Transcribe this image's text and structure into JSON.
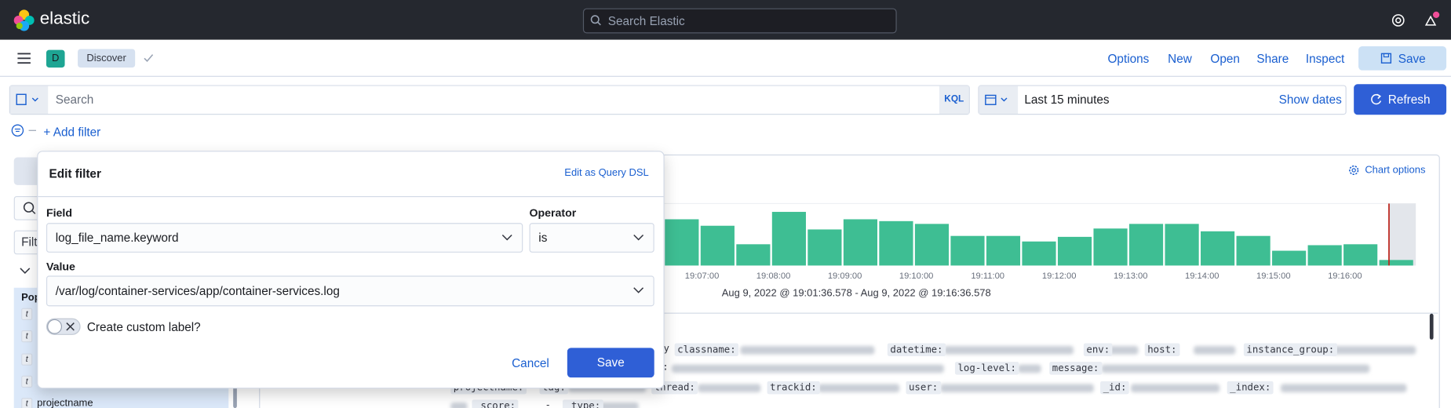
{
  "header": {
    "logo": "elastic",
    "search_placeholder": "Search Elastic"
  },
  "app_bar": {
    "space_badge": "D",
    "breadcrumb": "Discover",
    "menu": [
      "Options",
      "New",
      "Open",
      "Share",
      "Inspect"
    ],
    "save": "Save"
  },
  "query_bar": {
    "placeholder": "Search",
    "language": "KQL",
    "date_range": "Last 15 minutes",
    "show_dates": "Show dates",
    "refresh": "Refresh"
  },
  "filter_bar": {
    "add_filter": "+ Add filter"
  },
  "sidebar": {
    "filter_placeholder": "Filt",
    "popular_heading": "Pop",
    "field_types": [
      "t",
      "t",
      "t",
      "t",
      "t"
    ],
    "visible_field": "projectname"
  },
  "chart_data": {
    "type": "bar",
    "chart_options": "Chart options",
    "categories": [
      null,
      "19:07:00",
      null,
      "19:08:00",
      null,
      "19:09:00",
      null,
      "19:10:00",
      null,
      "19:11:00",
      null,
      "19:12:00",
      null,
      "19:13:00",
      null,
      "19:14:00",
      null,
      "19:15:00",
      null,
      "19:16:00",
      null
    ],
    "values": [
      50,
      43,
      23,
      58,
      39,
      50,
      48,
      45,
      32,
      32,
      26,
      31,
      40,
      45,
      45,
      37,
      32,
      16,
      22,
      23,
      6
    ],
    "color": "#3ebe93",
    "ylim": [
      0,
      69
    ],
    "time_range": "Aug 9, 2022 @ 19:01:36.578 - Aug 9, 2022 @ 19:16:36.578"
  },
  "documents": {
    "rows": [
      [
        "y",
        "classname:",
        "datetime:",
        "env:",
        "host:",
        "instance_group:"
      ],
      [
        ":",
        "log-level:",
        "message:"
      ],
      [
        "projectname:",
        "-",
        "tag:",
        "thread:",
        "trackid:",
        "user:",
        "_id:",
        "_index:"
      ],
      [
        "_score:",
        "-",
        "_type:"
      ]
    ]
  },
  "edit_filter": {
    "title": "Edit filter",
    "query_dsl": "Edit as Query DSL",
    "field_label": "Field",
    "field_value": "log_file_name.keyword",
    "operator_label": "Operator",
    "operator_value": "is",
    "value_label": "Value",
    "value_value": "/var/log/container-services/app/container-services.log",
    "custom_label": "Create custom label?",
    "cancel": "Cancel",
    "save": "Save"
  }
}
